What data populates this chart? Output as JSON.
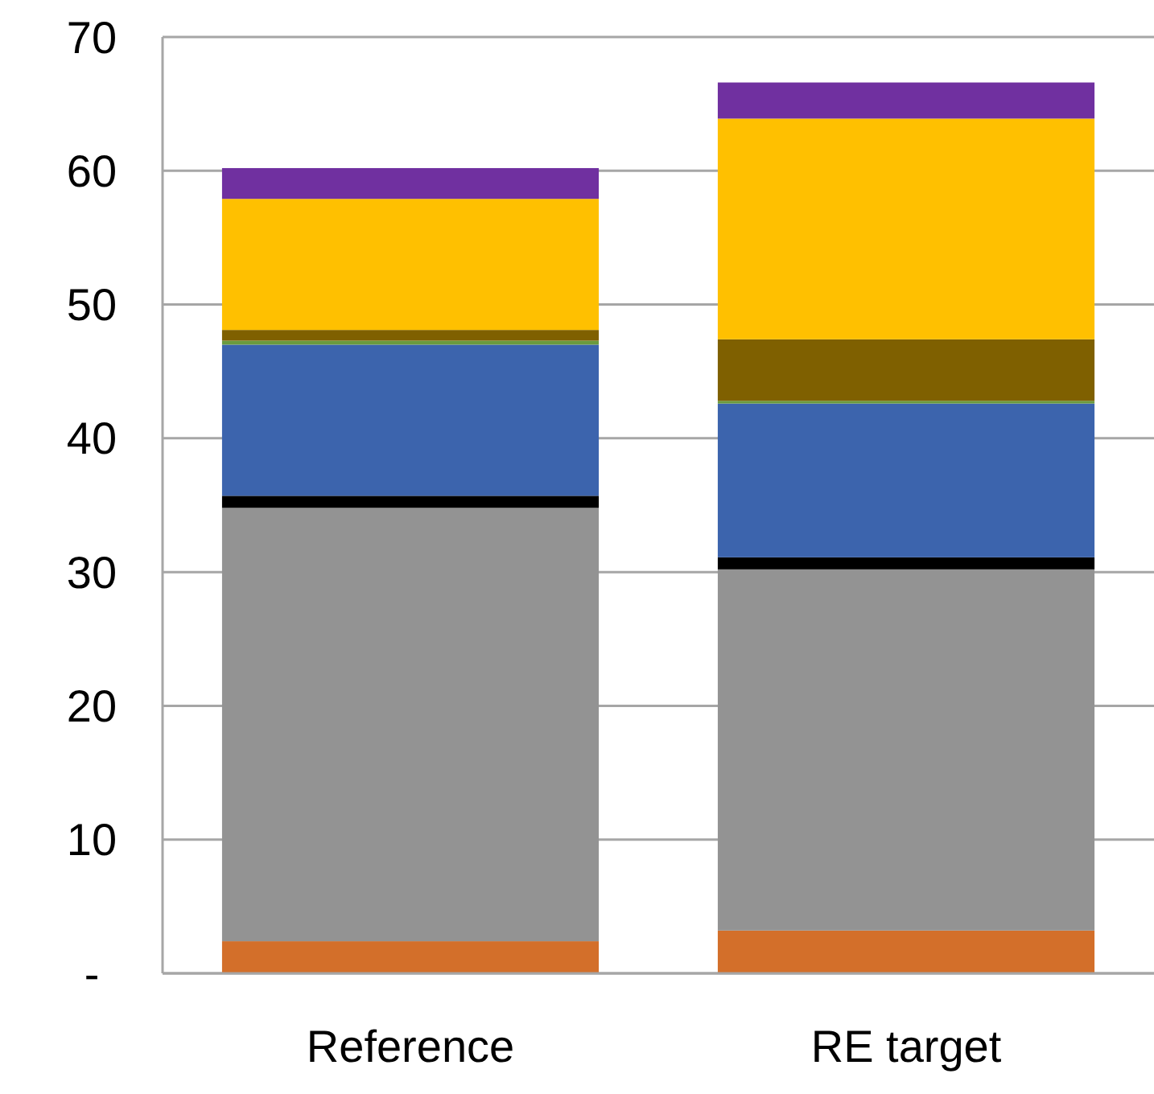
{
  "chart_data": {
    "type": "bar",
    "stacked": true,
    "categories": [
      "Reference",
      "RE target"
    ],
    "series": [
      {
        "color": "#d36f2a",
        "values": [
          2.4,
          3.2
        ]
      },
      {
        "color": "#939393",
        "values": [
          32.4,
          27.0
        ]
      },
      {
        "color": "#000000",
        "values": [
          0.9,
          0.9
        ]
      },
      {
        "color": "#3c64ad",
        "values": [
          11.3,
          11.5
        ]
      },
      {
        "color": "#6a9a3e",
        "values": [
          0.3,
          0.2
        ]
      },
      {
        "color": "#7f6000",
        "values": [
          0.8,
          4.6
        ]
      },
      {
        "color": "#ffc000",
        "values": [
          9.8,
          16.5
        ]
      },
      {
        "color": "#7030a0",
        "values": [
          2.3,
          2.7
        ]
      }
    ],
    "ylim": [
      0,
      70
    ],
    "yticks": [
      {
        "value": 0,
        "label": "-"
      },
      10,
      20,
      30,
      40,
      50,
      60,
      70
    ],
    "grid": "y"
  }
}
